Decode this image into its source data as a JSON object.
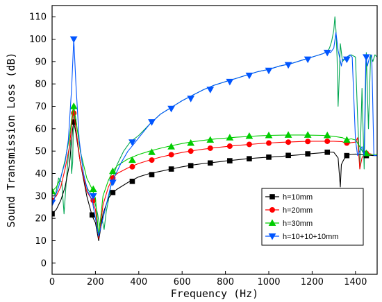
{
  "chart_data": {
    "type": "line",
    "xlabel": "Frequency (Hz)",
    "ylabel": "Sound Transmission Loss (dB)",
    "xlim": [
      0,
      1500
    ],
    "ylim": [
      -5,
      115
    ],
    "xticks": [
      0,
      200,
      400,
      600,
      800,
      1000,
      1200,
      1400
    ],
    "yticks": [
      0,
      10,
      20,
      30,
      40,
      50,
      60,
      70,
      80,
      90,
      100,
      110
    ],
    "grid": false,
    "legend_position": "bottom-right",
    "series": [
      {
        "name": "h=10mm",
        "color": "#000000",
        "marker": "square",
        "x": [
          0,
          20,
          40,
          60,
          80,
          95,
          100,
          110,
          130,
          160,
          185,
          200,
          215,
          235,
          260,
          280,
          300,
          350,
          400,
          450,
          500,
          550,
          600,
          650,
          700,
          750,
          800,
          850,
          900,
          950,
          1000,
          1050,
          1100,
          1150,
          1200,
          1250,
          1280,
          1300,
          1320,
          1330,
          1335,
          1345,
          1360,
          1380,
          1400,
          1420,
          1440,
          1460,
          1480,
          1500
        ],
        "y": [
          22,
          24,
          28,
          34,
          44,
          60,
          63,
          58,
          45,
          30,
          21,
          18,
          10,
          22,
          29,
          31.5,
          33,
          36,
          38.5,
          40,
          41,
          42,
          43,
          43.8,
          44.5,
          45,
          45.6,
          46.1,
          46.6,
          47,
          47.3,
          47.6,
          48,
          48.4,
          48.9,
          49.3,
          49.6,
          49.5,
          47,
          34,
          44,
          46,
          48,
          48.5,
          48.7,
          48.5,
          48.3,
          48.2,
          48,
          48
        ],
        "markers": [
          [
            0,
            22
          ],
          [
            100,
            63
          ],
          [
            185,
            21.5
          ],
          [
            280,
            31.5
          ],
          [
            370,
            36.5
          ],
          [
            460,
            39.5
          ],
          [
            550,
            42
          ],
          [
            640,
            43.5
          ],
          [
            730,
            44.7
          ],
          [
            820,
            45.7
          ],
          [
            910,
            46.6
          ],
          [
            1000,
            47.3
          ],
          [
            1090,
            48.1
          ],
          [
            1180,
            48.8
          ],
          [
            1270,
            49.5
          ],
          [
            1360,
            48
          ],
          [
            1450,
            48
          ]
        ]
      },
      {
        "name": "h=20mm",
        "color": "#ff0000",
        "marker": "circle",
        "x": [
          0,
          20,
          40,
          60,
          80,
          95,
          100,
          110,
          130,
          160,
          185,
          200,
          215,
          235,
          260,
          280,
          300,
          350,
          400,
          450,
          500,
          550,
          600,
          650,
          700,
          750,
          800,
          850,
          900,
          950,
          1000,
          1050,
          1100,
          1150,
          1200,
          1250,
          1300,
          1340,
          1360,
          1380,
          1400,
          1410,
          1420,
          1430,
          1440,
          1460,
          1480,
          1500
        ],
        "y": [
          28,
          30,
          34,
          42,
          52,
          66,
          67,
          60,
          45,
          32,
          28,
          24,
          11,
          26,
          34,
          38,
          40,
          42.5,
          44.5,
          46,
          47.3,
          48.4,
          49.4,
          50.2,
          50.9,
          51.5,
          52,
          52.5,
          52.9,
          53.3,
          53.6,
          53.9,
          54.1,
          54.3,
          54.4,
          54.4,
          54.4,
          54.2,
          53,
          53.8,
          54,
          56,
          42,
          47,
          48.5,
          49,
          48.5,
          48.5
        ],
        "markers": [
          [
            0,
            28
          ],
          [
            100,
            67
          ],
          [
            190,
            28
          ],
          [
            280,
            38
          ],
          [
            370,
            43
          ],
          [
            460,
            46
          ],
          [
            550,
            48.4
          ],
          [
            640,
            50
          ],
          [
            730,
            51.3
          ],
          [
            820,
            52.2
          ],
          [
            910,
            53
          ],
          [
            1000,
            53.6
          ],
          [
            1090,
            54
          ],
          [
            1180,
            54.3
          ],
          [
            1270,
            54.4
          ],
          [
            1360,
            53.6
          ],
          [
            1450,
            49
          ]
        ]
      },
      {
        "name": "h=30mm",
        "color": "#00cc00",
        "marker": "triangle",
        "x": [
          0,
          20,
          40,
          60,
          80,
          95,
          100,
          110,
          130,
          160,
          185,
          200,
          215,
          235,
          260,
          280,
          300,
          350,
          400,
          450,
          500,
          550,
          600,
          650,
          700,
          750,
          800,
          850,
          900,
          950,
          1000,
          1050,
          1100,
          1150,
          1200,
          1250,
          1300,
          1340,
          1360,
          1380,
          1400,
          1420,
          1440,
          1460,
          1480,
          1500
        ],
        "y": [
          32,
          34,
          38,
          46,
          56,
          68,
          70,
          64,
          50,
          38,
          33,
          29,
          12,
          30,
          37,
          41,
          43.5,
          46.5,
          48.5,
          50,
          51.3,
          52.4,
          53.4,
          54.2,
          54.8,
          55.4,
          55.8,
          56.2,
          56.5,
          56.8,
          57,
          57.1,
          57.2,
          57.2,
          57.1,
          57,
          56.6,
          56,
          55,
          55.5,
          55,
          52,
          48.5,
          48.5,
          48.5,
          48.5
        ],
        "markers": [
          [
            0,
            32
          ],
          [
            100,
            70
          ],
          [
            190,
            33
          ],
          [
            280,
            41
          ],
          [
            370,
            46
          ],
          [
            460,
            49.5
          ],
          [
            550,
            52
          ],
          [
            640,
            53.6
          ],
          [
            730,
            55
          ],
          [
            820,
            56
          ],
          [
            910,
            56.7
          ],
          [
            1000,
            57
          ],
          [
            1090,
            57.2
          ],
          [
            1180,
            57.2
          ],
          [
            1270,
            57
          ],
          [
            1360,
            55
          ],
          [
            1450,
            49
          ]
        ]
      },
      {
        "name": "h=10+10+10mm",
        "color": "#0055ff",
        "marker": "triangle-down",
        "x": [
          0,
          15,
          30,
          45,
          60,
          75,
          90,
          100,
          110,
          125,
          145,
          165,
          185,
          200,
          215,
          230,
          250,
          270,
          290,
          320,
          350,
          380,
          400,
          450,
          500,
          550,
          600,
          650,
          700,
          750,
          800,
          850,
          900,
          950,
          1000,
          1050,
          1100,
          1150,
          1200,
          1250,
          1270,
          1285,
          1300,
          1310,
          1320,
          1335,
          1340,
          1345,
          1360,
          1375,
          1385,
          1400,
          1410,
          1420,
          1430,
          1440,
          1448,
          1455,
          1465,
          1475,
          1485,
          1500
        ],
        "y": [
          26,
          30,
          34,
          40,
          45,
          55,
          78,
          100,
          80,
          55,
          40,
          32,
          28,
          20,
          12,
          18,
          26,
          34,
          39,
          45,
          50,
          53.5,
          56,
          62,
          66.5,
          69.5,
          72.5,
          75,
          77.5,
          79.5,
          81,
          82.5,
          84,
          85.5,
          86.5,
          88,
          89,
          90.5,
          92,
          93.5,
          94.5,
          94,
          96,
          103,
          95,
          88,
          91,
          91,
          92,
          93,
          92,
          55,
          48,
          50,
          52,
          48,
          92,
          88,
          92,
          93,
          48,
          48
        ],
        "markers": [
          [
            0,
            27
          ],
          [
            100,
            100
          ],
          [
            190,
            30
          ],
          [
            280,
            36
          ],
          [
            370,
            54
          ],
          [
            460,
            63
          ],
          [
            550,
            69
          ],
          [
            640,
            73.5
          ],
          [
            730,
            77.5
          ],
          [
            820,
            81
          ],
          [
            910,
            83.8
          ],
          [
            1000,
            86
          ],
          [
            1090,
            88.5
          ],
          [
            1180,
            91
          ],
          [
            1270,
            94
          ],
          [
            1360,
            91
          ],
          [
            1450,
            92
          ]
        ]
      },
      {
        "name": "",
        "color": "#00a651",
        "marker": "none",
        "x": [
          0,
          15,
          30,
          45,
          55,
          65,
          75,
          85,
          90,
          95,
          100,
          110,
          125,
          145,
          165,
          185,
          200,
          210,
          220,
          230,
          240,
          250,
          260,
          270,
          280,
          300,
          330,
          360,
          400,
          450,
          500,
          550,
          600,
          650,
          700,
          750,
          800,
          850,
          900,
          950,
          1000,
          1050,
          1100,
          1150,
          1200,
          1250,
          1270,
          1280,
          1290,
          1300,
          1305,
          1310,
          1315,
          1320,
          1325,
          1330,
          1340,
          1350,
          1360,
          1380,
          1400,
          1410,
          1420,
          1430,
          1440,
          1450,
          1460,
          1470,
          1480,
          1490,
          1500
        ],
        "y": [
          33,
          30,
          38,
          36,
          22,
          36,
          48,
          55,
          40,
          45,
          70,
          60,
          48,
          38,
          33,
          30,
          26,
          22,
          16,
          20,
          15,
          23,
          28,
          34,
          38,
          44,
          50,
          54,
          57,
          62,
          66.5,
          69.5,
          72.5,
          75,
          77.5,
          79.5,
          81,
          82.5,
          84,
          85.5,
          86.5,
          88,
          89,
          90.5,
          92,
          93.5,
          94.5,
          96,
          99,
          104,
          110,
          104,
          92,
          70,
          83,
          98,
          90,
          91,
          92,
          93,
          92,
          65,
          42,
          78,
          42,
          94,
          60,
          93,
          90,
          93,
          92
        ]
      }
    ]
  }
}
